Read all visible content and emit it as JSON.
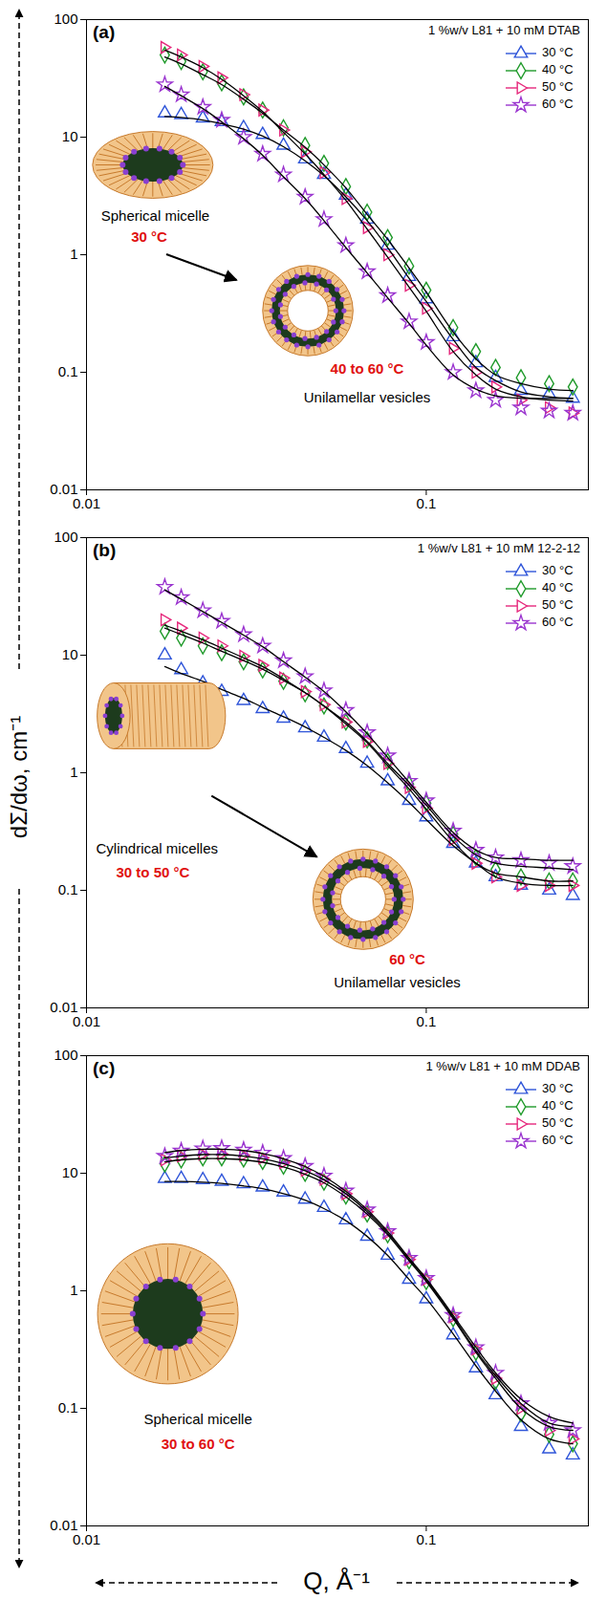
{
  "shared": {
    "ylabel": "dΣ/dω, cm⁻¹",
    "xlabel": "Q, Å⁻¹"
  },
  "chart_data": [
    {
      "type": "scatter",
      "panel": "(a)",
      "title": "1 %w/v L81 + 10 mM DTAB",
      "log": true,
      "legend": "top-right",
      "xlim": [
        0.01,
        0.3
      ],
      "xticks": [
        0.01,
        0.1
      ],
      "ylim": [
        0.01,
        100
      ],
      "yticks": [
        0.01,
        0.1,
        1,
        10,
        100
      ],
      "x": [
        0.017,
        0.019,
        0.022,
        0.025,
        0.029,
        0.033,
        0.038,
        0.044,
        0.05,
        0.058,
        0.067,
        0.077,
        0.089,
        0.1,
        0.12,
        0.14,
        0.16,
        0.19,
        0.23,
        0.27
      ],
      "series": [
        {
          "name": "30 °C",
          "color": "#2f55d9",
          "marker": "triangle",
          "values": [
            16,
            15.5,
            14.5,
            13.5,
            12,
            10.5,
            8.5,
            6.5,
            4.8,
            3.2,
            2.0,
            1.2,
            0.65,
            0.42,
            0.2,
            0.12,
            0.09,
            0.07,
            0.065,
            0.06
          ],
          "fit": [
            15,
            14.7,
            14,
            13,
            11.7,
            10.2,
            8.3,
            6.3,
            4.7,
            3.1,
            1.95,
            1.15,
            0.63,
            0.4,
            0.19,
            0.11,
            0.085,
            0.068,
            0.062,
            0.06
          ]
        },
        {
          "name": "40 °C",
          "color": "#1f9a2a",
          "marker": "diamond",
          "values": [
            50,
            44,
            36,
            29,
            22,
            17,
            12,
            8.5,
            6,
            3.8,
            2.3,
            1.4,
            0.8,
            0.5,
            0.24,
            0.15,
            0.11,
            0.09,
            0.08,
            0.075
          ],
          "fit": [
            48,
            42,
            34,
            28,
            21,
            16,
            11.5,
            8.2,
            5.8,
            3.7,
            2.2,
            1.35,
            0.77,
            0.48,
            0.22,
            0.13,
            0.095,
            0.08,
            0.072,
            0.07
          ]
        },
        {
          "name": "50 °C",
          "color": "#e6287c",
          "marker": "triangle-right",
          "values": [
            58,
            50,
            40,
            32,
            23,
            17,
            11.5,
            7.5,
            5,
            3,
            1.7,
            1.0,
            0.55,
            0.35,
            0.16,
            0.1,
            0.075,
            0.058,
            0.05,
            0.045
          ],
          "fit": [
            55,
            48,
            39,
            31,
            22.5,
            16.5,
            11,
            7.2,
            4.8,
            2.9,
            1.65,
            0.95,
            0.53,
            0.33,
            0.15,
            0.095,
            0.072,
            0.062,
            0.058,
            0.057
          ]
        },
        {
          "name": "60 °C",
          "color": "#9a34cf",
          "marker": "star",
          "values": [
            28,
            23,
            18,
            14,
            10,
            7.2,
            4.8,
            3.1,
            2.0,
            1.2,
            0.72,
            0.45,
            0.27,
            0.18,
            0.1,
            0.07,
            0.058,
            0.05,
            0.047,
            0.045
          ],
          "fit": [
            27,
            22.5,
            17.5,
            13.5,
            9.7,
            7,
            4.6,
            3,
            1.95,
            1.15,
            0.7,
            0.43,
            0.26,
            0.17,
            0.095,
            0.072,
            0.063,
            0.06,
            0.06,
            0.06
          ]
        }
      ],
      "annotations": [
        {
          "text": "Spherical micelle"
        },
        {
          "text": "30 °C",
          "color": "#e01010"
        },
        {
          "text": "40 to 60 °C",
          "color": "#e01010"
        },
        {
          "text": "Unilamellar vesicles"
        }
      ]
    },
    {
      "type": "scatter",
      "panel": "(b)",
      "title": "1 %w/v L81 + 10 mM 12-2-12",
      "log": true,
      "legend": "top-right",
      "xlim": [
        0.01,
        0.3
      ],
      "xticks": [
        0.01,
        0.1
      ],
      "ylim": [
        0.01,
        100
      ],
      "yticks": [
        0.01,
        0.1,
        1,
        10,
        100
      ],
      "x": [
        0.017,
        0.019,
        0.022,
        0.025,
        0.029,
        0.033,
        0.038,
        0.044,
        0.05,
        0.058,
        0.067,
        0.077,
        0.089,
        0.1,
        0.12,
        0.14,
        0.16,
        0.19,
        0.23,
        0.27
      ],
      "series": [
        {
          "name": "30 °C",
          "color": "#2f55d9",
          "marker": "triangle",
          "values": [
            10,
            7.5,
            5.8,
            4.9,
            4.1,
            3.5,
            2.9,
            2.4,
            2.0,
            1.6,
            1.2,
            0.85,
            0.58,
            0.42,
            0.25,
            0.17,
            0.13,
            0.11,
            0.1,
            0.09
          ],
          "fit": [
            8,
            7,
            6,
            5.1,
            4.3,
            3.6,
            3.0,
            2.45,
            2.0,
            1.55,
            1.15,
            0.82,
            0.56,
            0.4,
            0.24,
            0.17,
            0.13,
            0.115,
            0.11,
            0.11
          ]
        },
        {
          "name": "40 °C",
          "color": "#1f9a2a",
          "marker": "diamond",
          "values": [
            16,
            14,
            12,
            10.5,
            8.8,
            7.5,
            6,
            4.7,
            3.7,
            2.7,
            1.9,
            1.25,
            0.8,
            0.55,
            0.3,
            0.19,
            0.15,
            0.13,
            0.12,
            0.12
          ],
          "fit": [
            17,
            15,
            12.7,
            10.8,
            9,
            7.6,
            6.1,
            4.8,
            3.7,
            2.7,
            1.85,
            1.2,
            0.78,
            0.53,
            0.29,
            0.2,
            0.17,
            0.16,
            0.155,
            0.15
          ]
        },
        {
          "name": "50 °C",
          "color": "#e6287c",
          "marker": "triangle-right",
          "values": [
            20,
            17,
            14,
            12,
            9.8,
            8.2,
            6.4,
            4.9,
            3.8,
            2.7,
            1.85,
            1.2,
            0.75,
            0.5,
            0.27,
            0.17,
            0.13,
            0.11,
            0.11,
            0.11
          ],
          "fit": [
            18,
            16,
            13.5,
            11.5,
            9.5,
            8,
            6.3,
            4.8,
            3.7,
            2.6,
            1.8,
            1.15,
            0.73,
            0.49,
            0.26,
            0.17,
            0.14,
            0.13,
            0.12,
            0.12
          ]
        },
        {
          "name": "60 °C",
          "color": "#9a34cf",
          "marker": "star",
          "values": [
            38,
            31,
            24,
            19.5,
            15,
            12,
            9,
            6.6,
            5,
            3.4,
            2.2,
            1.4,
            0.85,
            0.58,
            0.32,
            0.22,
            0.19,
            0.18,
            0.17,
            0.16
          ],
          "fit": [
            36,
            30,
            23.5,
            19,
            14.8,
            11.8,
            8.8,
            6.5,
            4.9,
            3.3,
            2.15,
            1.35,
            0.83,
            0.56,
            0.31,
            0.22,
            0.19,
            0.185,
            0.18,
            0.18
          ]
        }
      ],
      "annotations": [
        {
          "text": "Cylindrical micelles"
        },
        {
          "text": "30 to 50 °C",
          "color": "#e01010"
        },
        {
          "text": "60 °C",
          "color": "#e01010"
        },
        {
          "text": "Unilamellar vesicles"
        }
      ]
    },
    {
      "type": "scatter",
      "panel": "(c)",
      "title": "1 %w/v L81 + 10 mM DDAB",
      "log": true,
      "legend": "top-right",
      "xlim": [
        0.01,
        0.3
      ],
      "xticks": [
        0.01,
        0.1
      ],
      "ylim": [
        0.01,
        100
      ],
      "yticks": [
        0.01,
        0.1,
        1,
        10,
        100
      ],
      "x": [
        0.017,
        0.019,
        0.022,
        0.025,
        0.029,
        0.033,
        0.038,
        0.044,
        0.05,
        0.058,
        0.067,
        0.077,
        0.089,
        0.1,
        0.12,
        0.14,
        0.16,
        0.19,
        0.23,
        0.27
      ],
      "series": [
        {
          "name": "30 °C",
          "color": "#2f55d9",
          "marker": "triangle",
          "values": [
            9,
            9,
            8.8,
            8.5,
            8.1,
            7.6,
            6.9,
            6,
            5.1,
            4,
            2.9,
            2,
            1.25,
            0.85,
            0.42,
            0.22,
            0.13,
            0.07,
            0.045,
            0.04
          ],
          "fit": [
            8.5,
            8.5,
            8.4,
            8.2,
            7.8,
            7.4,
            6.7,
            5.9,
            5,
            3.95,
            2.9,
            2,
            1.25,
            0.86,
            0.43,
            0.23,
            0.14,
            0.08,
            0.055,
            0.05
          ]
        },
        {
          "name": "40 °C",
          "color": "#1f9a2a",
          "marker": "diamond",
          "values": [
            12,
            13,
            13.5,
            13.5,
            13.2,
            12.6,
            11.5,
            10,
            8.4,
            6.4,
            4.5,
            3,
            1.8,
            1.2,
            0.58,
            0.3,
            0.17,
            0.09,
            0.06,
            0.05
          ],
          "fit": [
            12.5,
            13,
            13.3,
            13.3,
            13,
            12.4,
            11.3,
            9.8,
            8.3,
            6.3,
            4.5,
            3,
            1.8,
            1.2,
            0.58,
            0.3,
            0.18,
            0.1,
            0.07,
            0.065
          ]
        },
        {
          "name": "50 °C",
          "color": "#e6287c",
          "marker": "triangle-right",
          "values": [
            13,
            14,
            14.5,
            14.6,
            14.2,
            13.5,
            12.3,
            10.6,
            8.9,
            6.7,
            4.7,
            3.1,
            1.85,
            1.25,
            0.6,
            0.32,
            0.18,
            0.1,
            0.065,
            0.055
          ],
          "fit": [
            13.5,
            14,
            14.4,
            14.4,
            14,
            13.3,
            12.1,
            10.5,
            8.8,
            6.7,
            4.7,
            3.1,
            1.85,
            1.24,
            0.6,
            0.31,
            0.19,
            0.11,
            0.075,
            0.07
          ]
        },
        {
          "name": "60 °C",
          "color": "#9a34cf",
          "marker": "star",
          "values": [
            14,
            15.5,
            16.2,
            16.3,
            15.8,
            14.9,
            13.4,
            11.5,
            9.5,
            7.1,
            4.9,
            3.2,
            1.9,
            1.28,
            0.62,
            0.33,
            0.2,
            0.11,
            0.075,
            0.065
          ],
          "fit": [
            15,
            15.6,
            16,
            16,
            15.6,
            14.7,
            13.3,
            11.4,
            9.4,
            7,
            4.9,
            3.2,
            1.9,
            1.27,
            0.62,
            0.33,
            0.2,
            0.12,
            0.085,
            0.075
          ]
        }
      ],
      "annotations": [
        {
          "text": "Spherical micelle"
        },
        {
          "text": "30 to 60 °C",
          "color": "#e01010"
        }
      ]
    }
  ]
}
